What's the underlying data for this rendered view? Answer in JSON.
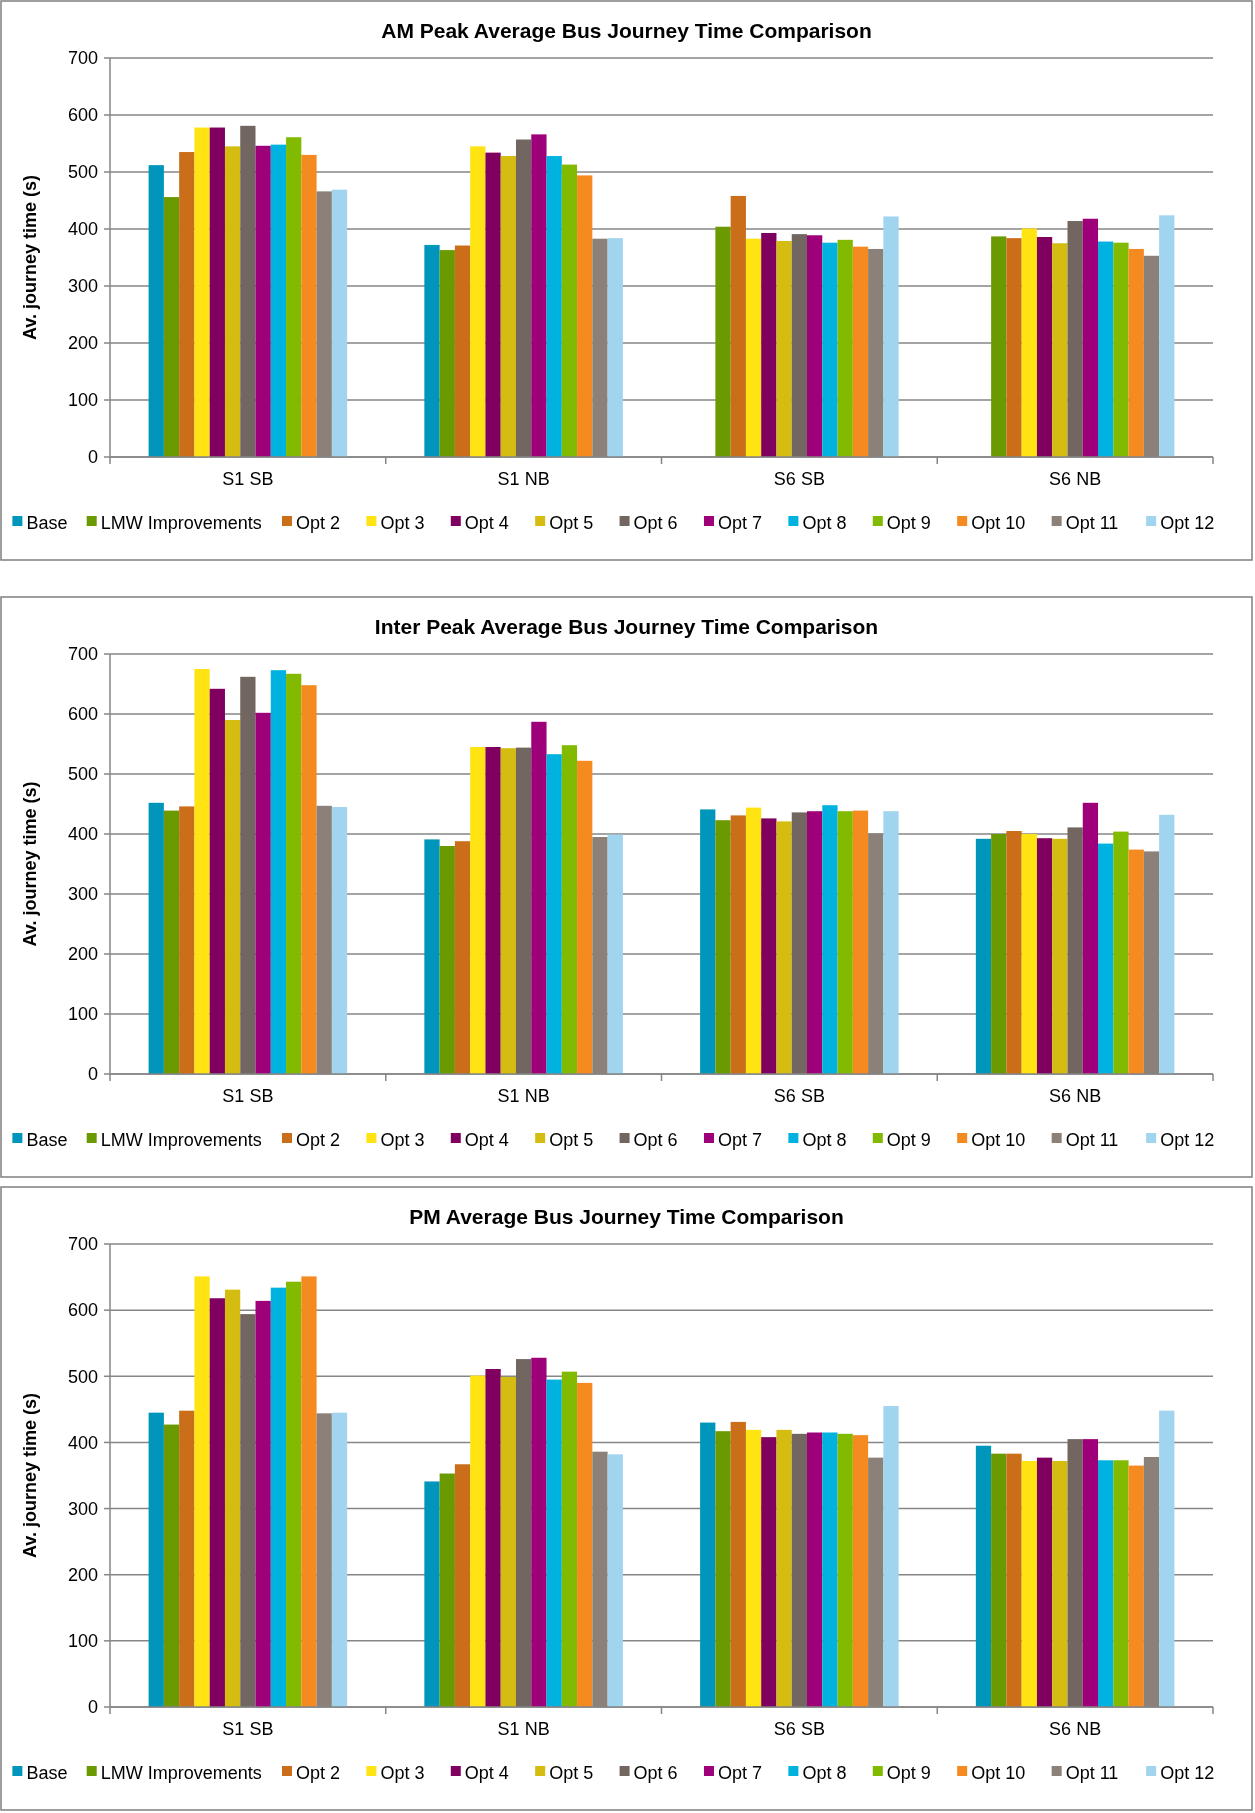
{
  "chart_data": [
    {
      "type": "bar",
      "title": "AM Peak Average Bus Journey Time Comparison",
      "ylabel": "Av. journey time (s)",
      "categories": [
        "S1 SB",
        "S1 NB",
        "S6 SB",
        "S6 NB"
      ],
      "ylim": [
        0,
        700
      ],
      "yticks": [
        0,
        100,
        200,
        300,
        400,
        500,
        600,
        700
      ],
      "grid": "y",
      "legend": "bottom",
      "series": [
        {
          "name": "Base",
          "color": "#0095ba",
          "values": [
            512,
            372,
            null,
            null
          ]
        },
        {
          "name": "LMW Improvements",
          "color": "#6a9a00",
          "values": [
            456,
            363,
            404,
            387
          ]
        },
        {
          "name": "Opt 2",
          "color": "#cb6e19",
          "values": [
            535,
            371,
            458,
            384
          ]
        },
        {
          "name": "Opt 3",
          "color": "#ffe312",
          "values": [
            578,
            545,
            383,
            401
          ]
        },
        {
          "name": "Opt 4",
          "color": "#800060",
          "values": [
            578,
            534,
            393,
            386
          ]
        },
        {
          "name": "Opt 5",
          "color": "#d4bc10",
          "values": [
            545,
            528,
            379,
            375
          ]
        },
        {
          "name": "Opt 6",
          "color": "#726760",
          "values": [
            581,
            557,
            391,
            414
          ]
        },
        {
          "name": "Opt 7",
          "color": "#9e007a",
          "values": [
            546,
            566,
            389,
            418
          ]
        },
        {
          "name": "Opt 8",
          "color": "#00b2e0",
          "values": [
            548,
            528,
            376,
            378
          ]
        },
        {
          "name": "Opt 9",
          "color": "#82ba00",
          "values": [
            561,
            513,
            381,
            376
          ]
        },
        {
          "name": "Opt 10",
          "color": "#f58a20",
          "values": [
            530,
            494,
            369,
            365
          ]
        },
        {
          "name": "Opt 11",
          "color": "#8b8178",
          "values": [
            466,
            383,
            365,
            353
          ]
        },
        {
          "name": "Opt 12",
          "color": "#a1d4ee",
          "values": [
            469,
            384,
            422,
            424
          ]
        }
      ]
    },
    {
      "type": "bar",
      "title": "Inter Peak Average Bus Journey Time Comparison",
      "ylabel": "Av. journey time (s)",
      "categories": [
        "S1 SB",
        "S1 NB",
        "S6 SB",
        "S6 NB"
      ],
      "ylim": [
        0,
        700
      ],
      "yticks": [
        0,
        100,
        200,
        300,
        400,
        500,
        600,
        700
      ],
      "grid": "y",
      "legend": "bottom",
      "series": [
        {
          "name": "Base",
          "color": "#0095ba",
          "values": [
            452,
            391,
            441,
            392
          ]
        },
        {
          "name": "LMW Improvements",
          "color": "#6a9a00",
          "values": [
            439,
            380,
            423,
            400
          ]
        },
        {
          "name": "Opt 2",
          "color": "#cb6e19",
          "values": [
            446,
            388,
            431,
            405
          ]
        },
        {
          "name": "Opt 3",
          "color": "#ffe312",
          "values": [
            675,
            545,
            444,
            400
          ]
        },
        {
          "name": "Opt 4",
          "color": "#800060",
          "values": [
            642,
            545,
            426,
            393
          ]
        },
        {
          "name": "Opt 5",
          "color": "#d4bc10",
          "values": [
            590,
            543,
            421,
            392
          ]
        },
        {
          "name": "Opt 6",
          "color": "#726760",
          "values": [
            662,
            544,
            436,
            411
          ]
        },
        {
          "name": "Opt 7",
          "color": "#9e007a",
          "values": [
            602,
            587,
            438,
            452
          ]
        },
        {
          "name": "Opt 8",
          "color": "#00b2e0",
          "values": [
            673,
            533,
            448,
            384
          ]
        },
        {
          "name": "Opt 9",
          "color": "#82ba00",
          "values": [
            667,
            548,
            438,
            404
          ]
        },
        {
          "name": "Opt 10",
          "color": "#f58a20",
          "values": [
            648,
            522,
            439,
            374
          ]
        },
        {
          "name": "Opt 11",
          "color": "#8b8178",
          "values": [
            447,
            395,
            401,
            371
          ]
        },
        {
          "name": "Opt 12",
          "color": "#a1d4ee",
          "values": [
            445,
            399,
            438,
            432
          ]
        }
      ]
    },
    {
      "type": "bar",
      "title": "PM Average Bus Journey Time Comparison",
      "ylabel": "Av. journey time (s)",
      "categories": [
        "S1 SB",
        "S1 NB",
        "S6 SB",
        "S6 NB"
      ],
      "ylim": [
        0,
        700
      ],
      "yticks": [
        0,
        100,
        200,
        300,
        400,
        500,
        600,
        700
      ],
      "grid": "y",
      "legend": "bottom",
      "series": [
        {
          "name": "Base",
          "color": "#0095ba",
          "values": [
            445,
            341,
            430,
            395
          ]
        },
        {
          "name": "LMW Improvements",
          "color": "#6a9a00",
          "values": [
            427,
            353,
            417,
            383
          ]
        },
        {
          "name": "Opt 2",
          "color": "#cb6e19",
          "values": [
            448,
            367,
            431,
            383
          ]
        },
        {
          "name": "Opt 3",
          "color": "#ffe312",
          "values": [
            651,
            501,
            419,
            372
          ]
        },
        {
          "name": "Opt 4",
          "color": "#800060",
          "values": [
            618,
            511,
            408,
            377
          ]
        },
        {
          "name": "Opt 5",
          "color": "#d4bc10",
          "values": [
            631,
            499,
            419,
            372
          ]
        },
        {
          "name": "Opt 6",
          "color": "#726760",
          "values": [
            594,
            526,
            413,
            405
          ]
        },
        {
          "name": "Opt 7",
          "color": "#9e007a",
          "values": [
            614,
            528,
            415,
            405
          ]
        },
        {
          "name": "Opt 8",
          "color": "#00b2e0",
          "values": [
            634,
            495,
            415,
            373
          ]
        },
        {
          "name": "Opt 9",
          "color": "#82ba00",
          "values": [
            643,
            507,
            413,
            373
          ]
        },
        {
          "name": "Opt 10",
          "color": "#f58a20",
          "values": [
            651,
            490,
            411,
            365
          ]
        },
        {
          "name": "Opt 11",
          "color": "#8b8178",
          "values": [
            444,
            386,
            377,
            378
          ]
        },
        {
          "name": "Opt 12",
          "color": "#a1d4ee",
          "values": [
            445,
            382,
            455,
            448
          ]
        }
      ]
    }
  ]
}
